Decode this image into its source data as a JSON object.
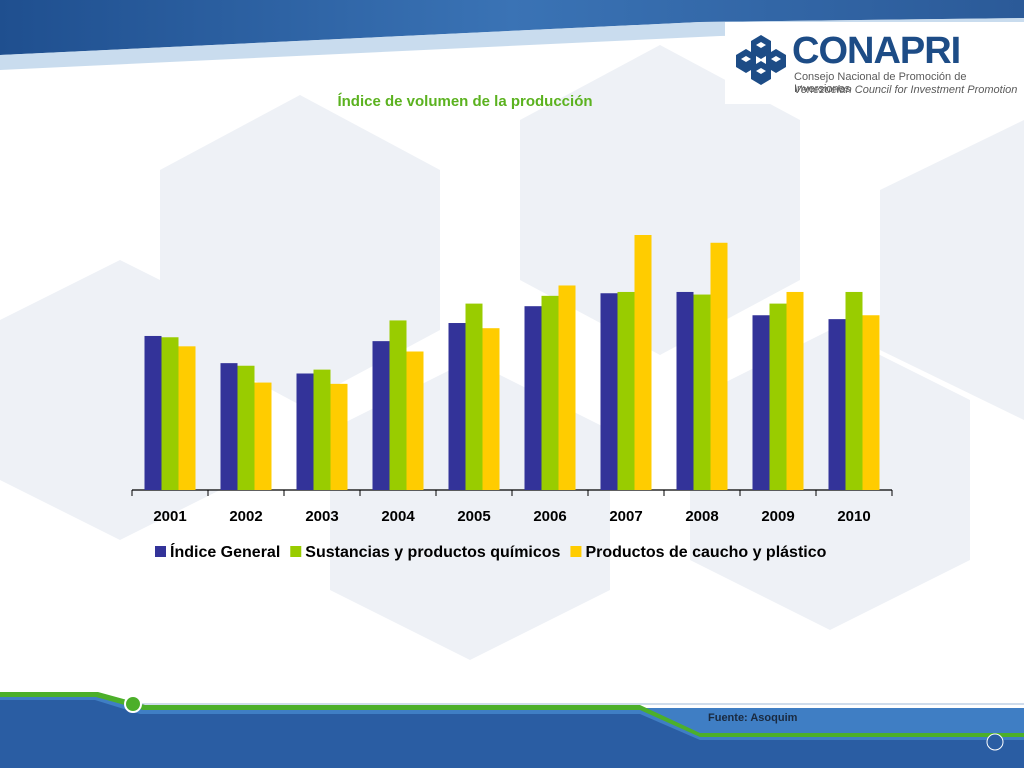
{
  "logo": {
    "name": "CONAPRI",
    "subtitle_es": "Consejo Nacional de Promoción de Inversiones",
    "subtitle_en": "Venezuelan Council for Investment Promotion",
    "icon": "conapri-cubes-logo-icon"
  },
  "source": "Fuente: Asoquim",
  "colors": {
    "series1": "#333399",
    "series2": "#99cc00",
    "series3": "#ffcc00",
    "title": "#5bb21f",
    "header_blue": "#2a5d9f",
    "footer_green": "#4caf2a"
  },
  "chart_data": {
    "type": "bar",
    "title": "Índice de volumen de la producción",
    "categories": [
      "2001",
      "2002",
      "2003",
      "2004",
      "2005",
      "2006",
      "2007",
      "2008",
      "2009",
      "2010"
    ],
    "series": [
      {
        "name": "Índice General",
        "values": [
          119,
          98,
          90,
          115,
          129,
          142,
          152,
          153,
          135,
          132
        ]
      },
      {
        "name": "Sustancias y productos químicos",
        "values": [
          118,
          96,
          93,
          131,
          144,
          150,
          153,
          151,
          144,
          153
        ]
      },
      {
        "name": "Productos de caucho y plástico",
        "values": [
          111,
          83,
          82,
          107,
          125,
          158,
          197,
          191,
          153,
          135
        ]
      }
    ],
    "ylim": [
      0,
      200
    ],
    "grid": false,
    "legend": "bottom",
    "xlabel": "",
    "ylabel": ""
  }
}
